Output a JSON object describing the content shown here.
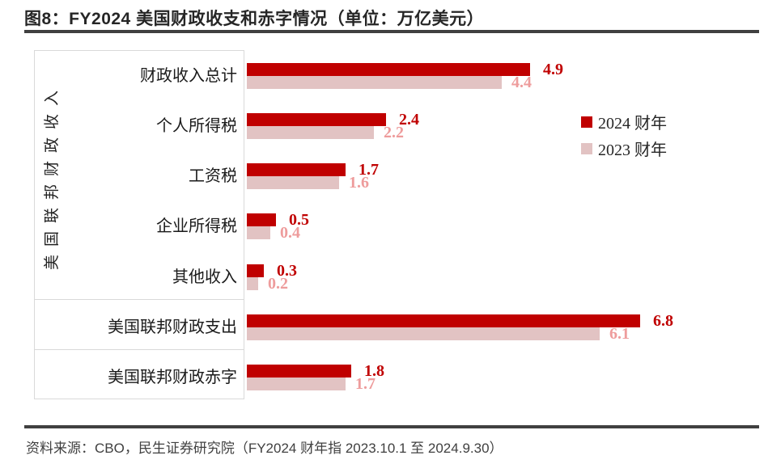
{
  "header": {
    "title": "图8：FY2024 美国财政收支和赤字情况（单位：万亿美元）"
  },
  "chart_data": {
    "type": "bar",
    "orientation": "horizontal",
    "title": "FY2024 美国财政收支和赤字情况",
    "unit": "万亿美元",
    "group_label": "美国联邦财政收入",
    "categories": [
      "财政收入总计",
      "个人所得税",
      "工资税",
      "企业所得税",
      "其他收入",
      "美国联邦财政支出",
      "美国联邦财政赤字"
    ],
    "sections": [
      {
        "label": "美国联邦财政收入",
        "row_start": 0,
        "row_end": 4
      },
      {
        "label": "",
        "row_start": 5,
        "row_end": 5
      },
      {
        "label": "",
        "row_start": 6,
        "row_end": 6
      }
    ],
    "series": [
      {
        "key": "fy2024",
        "name": "2024 财年",
        "color": "#C00000",
        "label_color": "#C00000",
        "values": [
          4.9,
          2.4,
          1.7,
          0.5,
          0.3,
          6.8,
          1.8
        ]
      },
      {
        "key": "fy2023",
        "name": "2023 财年",
        "color": "#E2C3C3",
        "label_color": "#EE9C9C",
        "values": [
          4.4,
          2.2,
          1.6,
          0.4,
          0.2,
          6.1,
          1.7
        ]
      }
    ],
    "xlim": [
      0,
      7
    ],
    "grid": false,
    "legend_position": "right",
    "value_labels": "outside-end"
  },
  "footer": {
    "source": "资料来源：CBO，民生证券研究院（FY2024 财年指 2023.10.1 至 2024.9.30）"
  },
  "colors": {
    "accent_dark_red": "#C00000",
    "accent_pink": "#E2C3C3",
    "pink_label": "#EE9C9C",
    "panel_border": "#D9D9D9",
    "rule": "#404040",
    "text": "#262626"
  }
}
